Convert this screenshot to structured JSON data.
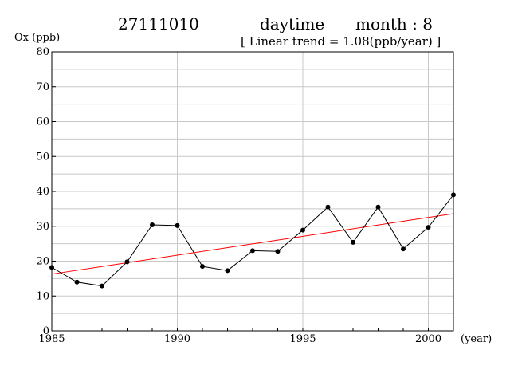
{
  "header": {
    "station": "27111010",
    "period": "daytime",
    "month_label": "month : 8",
    "trend_label": "[ Linear trend = 1.08(ppb/year) ]"
  },
  "chart_data": {
    "type": "line",
    "ylabel": "Ox (ppb)",
    "xlabel": "(year)",
    "xlim": [
      1985,
      2001
    ],
    "ylim": [
      0,
      80
    ],
    "x_ticks": [
      1985,
      1990,
      1995,
      2000
    ],
    "y_ticks": [
      0,
      10,
      20,
      30,
      40,
      50,
      60,
      70,
      80
    ],
    "grid": true,
    "series": [
      {
        "color": "#000000",
        "markers": true,
        "x": [
          1985,
          1986,
          1987,
          1988,
          1989,
          1990,
          1991,
          1992,
          1993,
          1994,
          1995,
          1996,
          1997,
          1998,
          1999,
          2000,
          2001
        ],
        "y": [
          18.2,
          14.0,
          12.9,
          19.8,
          30.4,
          30.2,
          18.5,
          17.3,
          23.0,
          22.8,
          28.9,
          35.5,
          25.4,
          35.5,
          23.5,
          29.7,
          39.0
        ]
      }
    ],
    "trend": {
      "color": "#ff0000",
      "slope": 1.08,
      "x": [
        1985,
        2001
      ],
      "y": [
        16.3,
        33.6
      ]
    }
  }
}
